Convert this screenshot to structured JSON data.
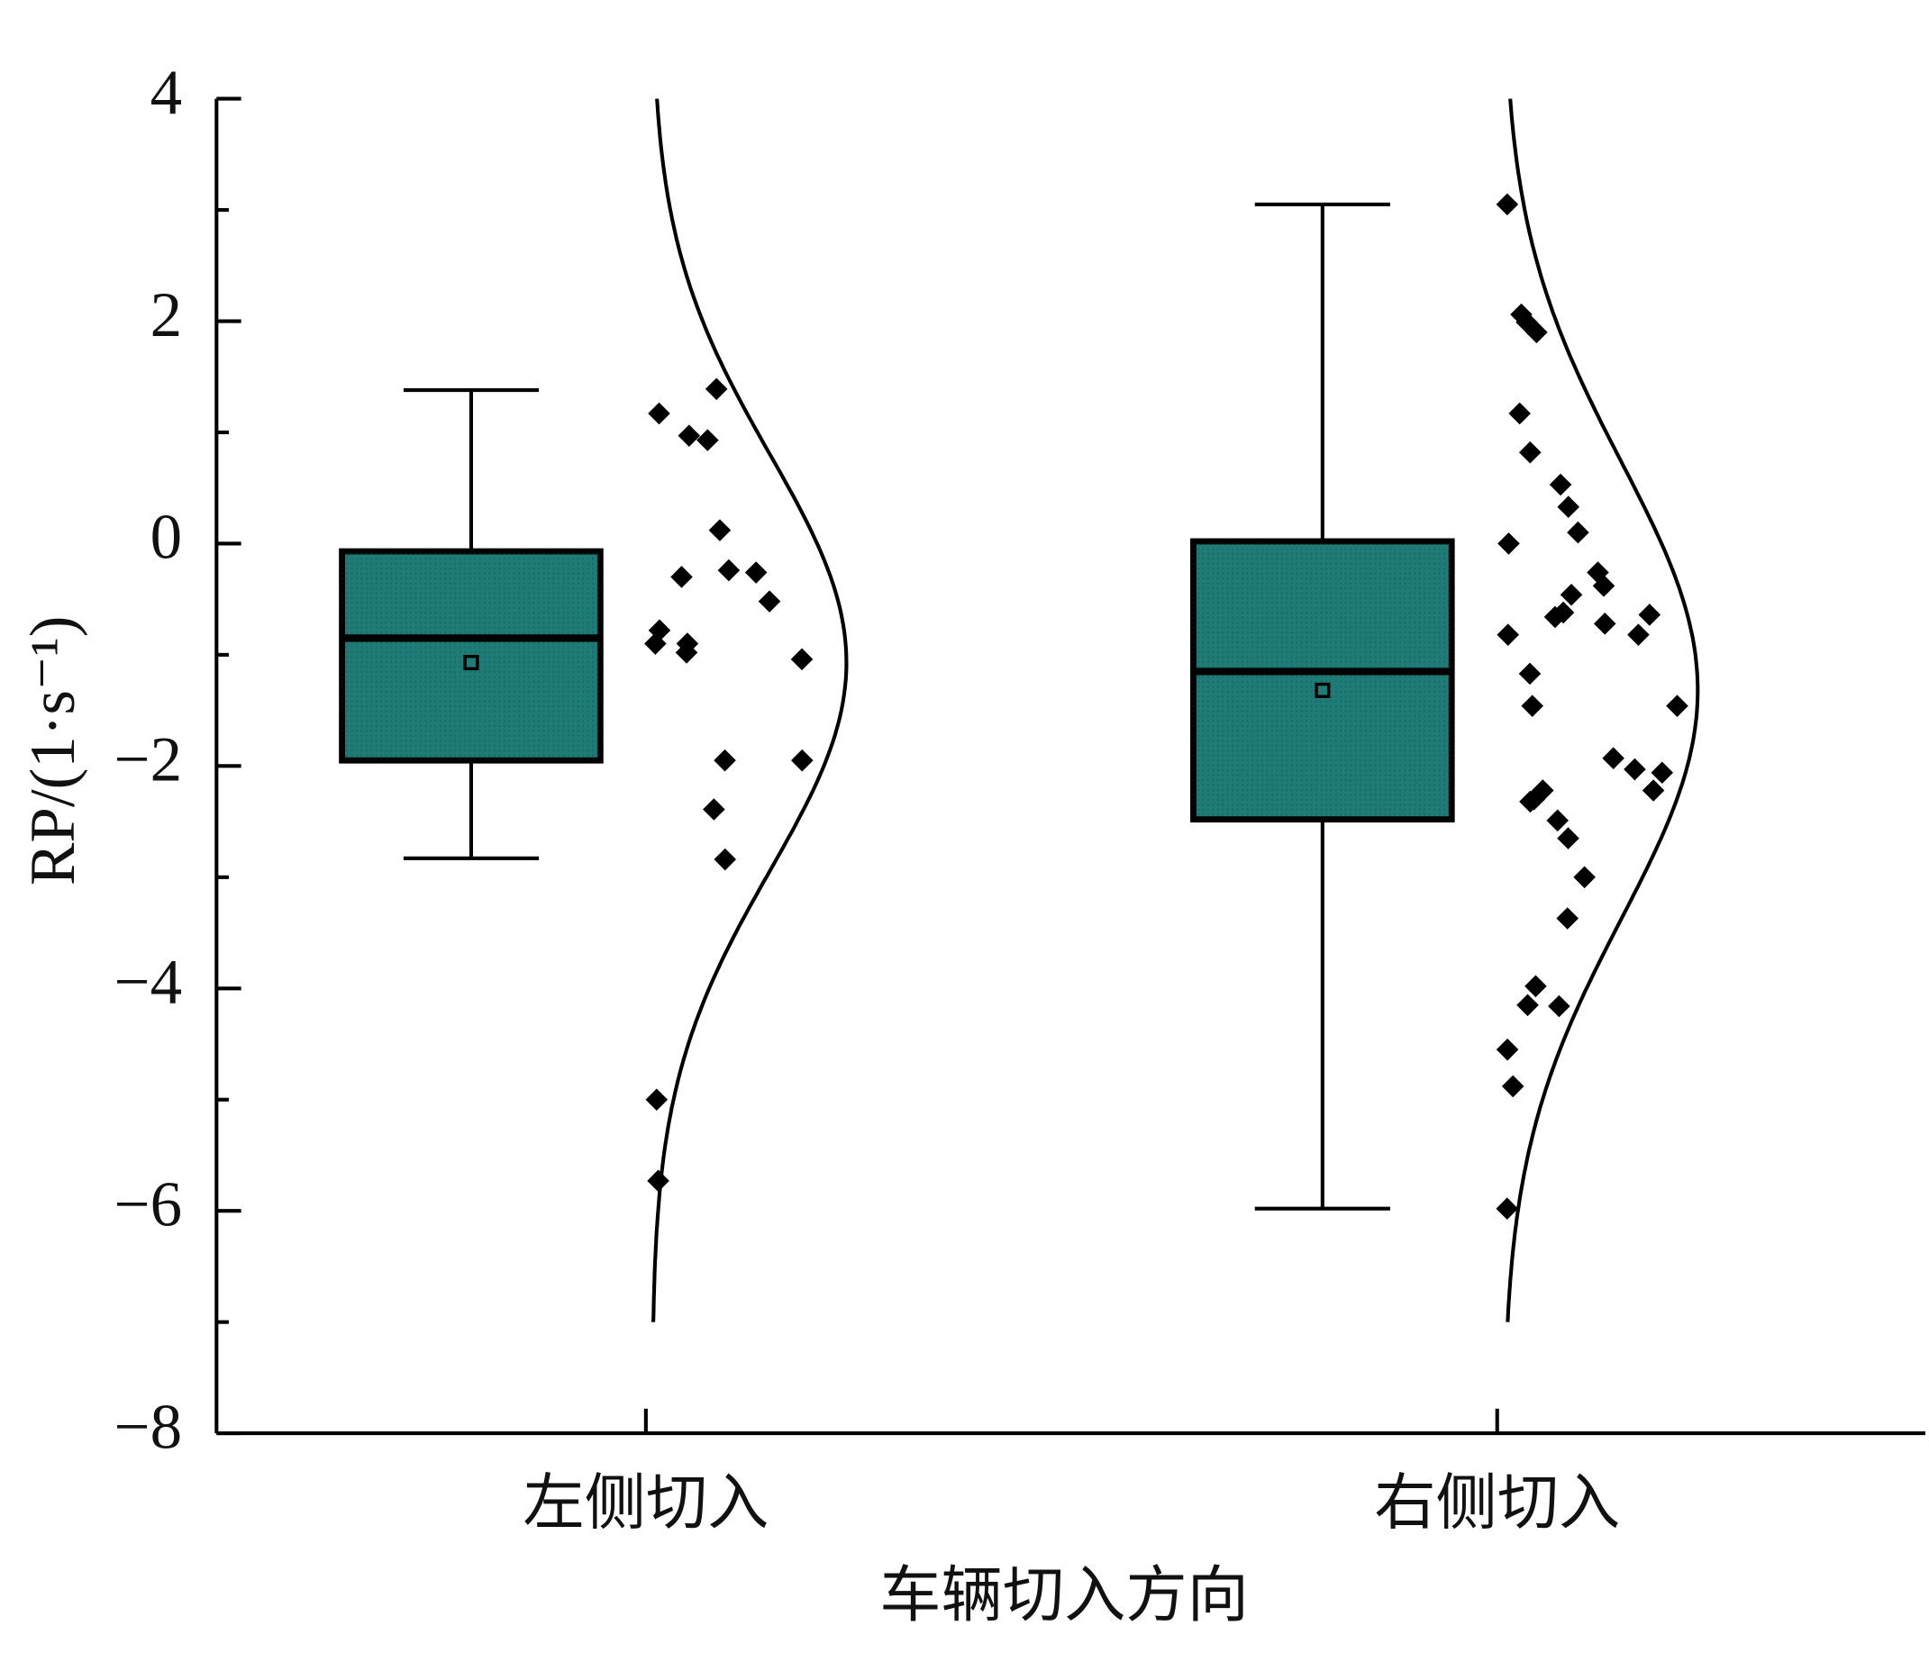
{
  "chart_data": {
    "type": "box",
    "x_label": "车辆切入方向",
    "y_label": "RP/(1·s⁻¹)",
    "categories": [
      "左侧切入",
      "右侧切入"
    ],
    "ylim": [
      -8,
      4
    ],
    "yticks": [
      {
        "value": -8,
        "label": "−8"
      },
      {
        "value": -6,
        "label": "−6"
      },
      {
        "value": -4,
        "label": "−4"
      },
      {
        "value": -2,
        "label": "−2"
      },
      0,
      2,
      4
    ],
    "yticks_minor": [
      -7,
      -5,
      -3,
      -1,
      1,
      3
    ],
    "box_color": "#1e7b76",
    "point_color": "#000000",
    "boxes": [
      {
        "whisker_low": -2.83,
        "q1": -1.95,
        "median": -0.85,
        "q3": -0.07,
        "whisker_high": 1.38,
        "mean": -1.07,
        "points": [
          1.39,
          1.17,
          0.93,
          0.97,
          0.12,
          -0.26,
          -0.3,
          -0.52,
          -0.24,
          -0.78,
          -0.98,
          -1.04,
          -0.9,
          -0.9,
          -1.95,
          -1.95,
          -2.39,
          -2.84,
          -5.0,
          -5.73
        ]
      },
      {
        "whisker_low": -5.98,
        "q1": -2.48,
        "median": -1.15,
        "q3": 0.02,
        "whisker_high": 3.05,
        "mean": -1.32,
        "points": [
          3.05,
          2.06,
          1.99,
          1.9,
          1.17,
          0.82,
          0.33,
          0.53,
          0.1,
          0.0,
          -0.26,
          -0.38,
          -0.46,
          -0.64,
          -0.62,
          -0.72,
          -0.82,
          -0.82,
          -0.66,
          -1.17,
          -1.46,
          -1.46,
          -1.93,
          -2.06,
          -2.22,
          -2.03,
          -2.32,
          -2.22,
          -2.3,
          -2.49,
          -2.65,
          -3.0,
          -3.37,
          -3.98,
          -4.16,
          -4.15,
          -4.55,
          -4.88,
          -5.98
        ]
      }
    ]
  }
}
